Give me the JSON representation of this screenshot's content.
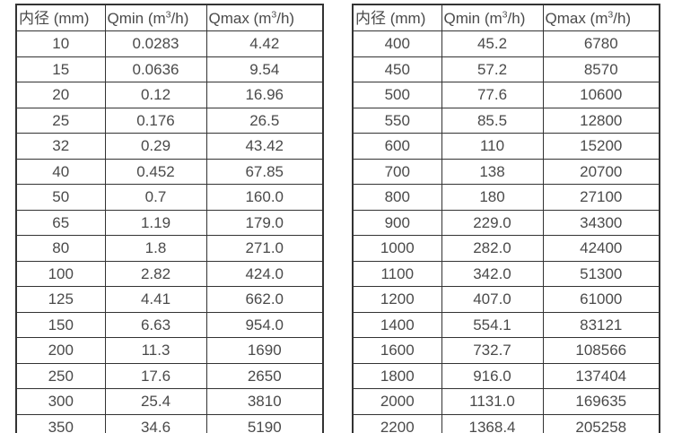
{
  "colors": {
    "background": "#ffffff",
    "border": "#333333",
    "text": "#4a4a4a"
  },
  "tables": [
    {
      "name": "flow-rate-table-small-diameters",
      "headers": [
        "内径 (mm)",
        "Qmin (m³/h)",
        "Qmax (m³/h)"
      ],
      "rows": [
        [
          "10",
          "0.0283",
          "4.42"
        ],
        [
          "15",
          "0.0636",
          "9.54"
        ],
        [
          "20",
          "0.12",
          "16.96"
        ],
        [
          "25",
          "0.176",
          "26.5"
        ],
        [
          "32",
          "0.29",
          "43.42"
        ],
        [
          "40",
          "0.452",
          "67.85"
        ],
        [
          "50",
          "0.7",
          "160.0"
        ],
        [
          "65",
          "1.19",
          "179.0"
        ],
        [
          "80",
          "1.8",
          "271.0"
        ],
        [
          "100",
          "2.82",
          "424.0"
        ],
        [
          "125",
          "4.41",
          "662.0"
        ],
        [
          "150",
          "6.63",
          "954.0"
        ],
        [
          "200",
          "11.3",
          "1690"
        ],
        [
          "250",
          "17.6",
          "2650"
        ],
        [
          "300",
          "25.4",
          "3810"
        ],
        [
          "350",
          "34.6",
          "5190"
        ]
      ]
    },
    {
      "name": "flow-rate-table-large-diameters",
      "headers": [
        "内径 (mm)",
        "Qmin (m³/h)",
        "Qmax (m³/h)"
      ],
      "rows": [
        [
          "400",
          "45.2",
          "6780"
        ],
        [
          "450",
          "57.2",
          "8570"
        ],
        [
          "500",
          "77.6",
          "10600"
        ],
        [
          "550",
          "85.5",
          "12800"
        ],
        [
          "600",
          "110",
          "15200"
        ],
        [
          "700",
          "138",
          "20700"
        ],
        [
          "800",
          "180",
          "27100"
        ],
        [
          "900",
          "229.0",
          "34300"
        ],
        [
          "1000",
          "282.0",
          "42400"
        ],
        [
          "1100",
          "342.0",
          "51300"
        ],
        [
          "1200",
          "407.0",
          "61000"
        ],
        [
          "1400",
          "554.1",
          "83121"
        ],
        [
          "1600",
          "732.7",
          "108566"
        ],
        [
          "1800",
          "916.0",
          "137404"
        ],
        [
          "2000",
          "1131.0",
          "169635"
        ],
        [
          "2200",
          "1368.4",
          "205258"
        ]
      ]
    }
  ]
}
